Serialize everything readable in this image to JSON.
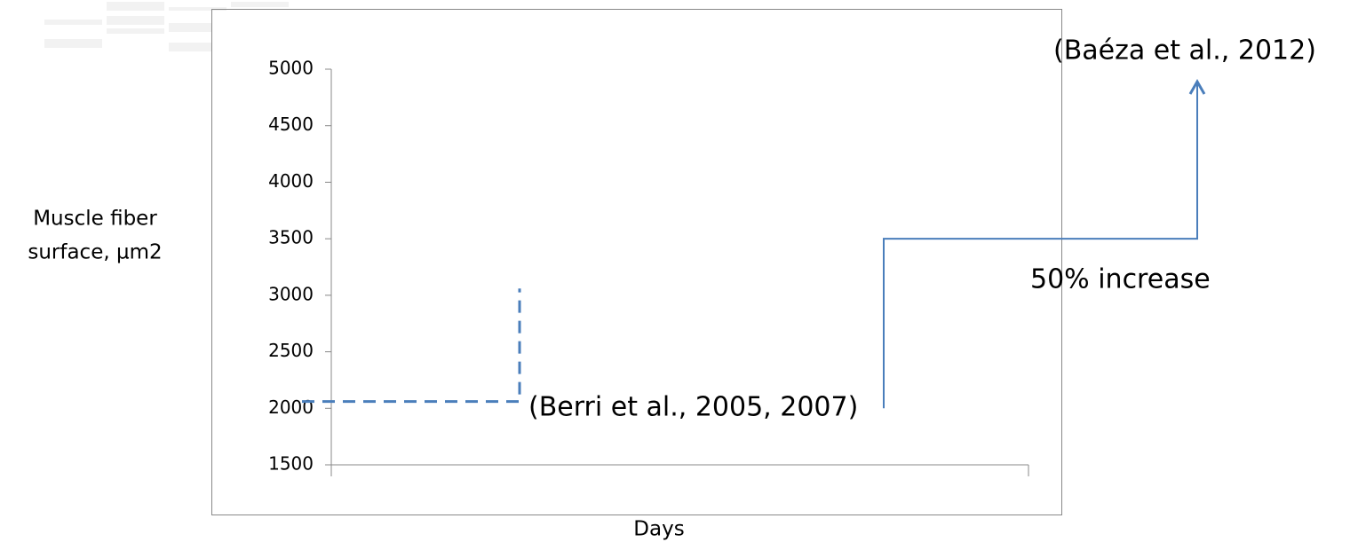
{
  "chart_data": {
    "type": "line",
    "ylabel": [
      "Muscle fiber",
      "surface, µm2"
    ],
    "xlabel": "Days",
    "ylim": [
      1500,
      5000
    ],
    "yticks": [
      1500,
      2000,
      2500,
      3000,
      3500,
      4000,
      4500,
      5000
    ],
    "annotations": [
      {
        "text": "(Berri et al., 2005, 2007)",
        "style": "dashed",
        "color": "#4a7ebb",
        "values": [
          2060,
          2060,
          3060
        ]
      },
      {
        "text": "(Baéza et al., 2012)",
        "style": "solid",
        "color": "#4a7ebb",
        "values": [
          2000,
          3500,
          3500,
          4890
        ]
      }
    ],
    "note": "50% increase"
  }
}
